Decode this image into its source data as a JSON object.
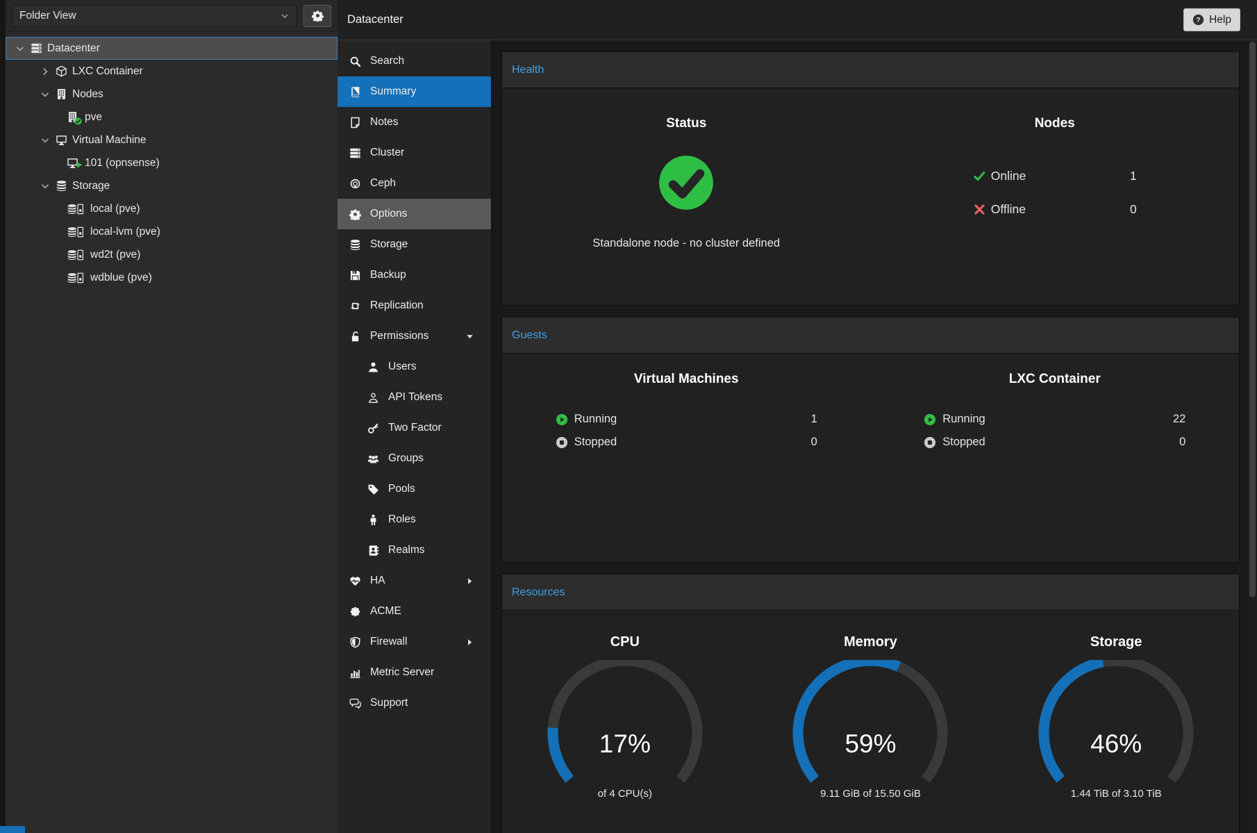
{
  "window": {
    "help_label": "Help"
  },
  "sidebar": {
    "view_selector": {
      "value": "Folder View"
    },
    "tree": [
      {
        "label": "Datacenter",
        "depth": 0,
        "expand": "expanded",
        "icon": "datacenter",
        "state": "selected"
      },
      {
        "label": "LXC Container",
        "depth": 1,
        "expand": "collapsed",
        "icon": "cube",
        "state": "normal"
      },
      {
        "label": "Nodes",
        "depth": 1,
        "expand": "expanded",
        "icon": "building",
        "state": "normal"
      },
      {
        "label": "pve",
        "depth": 2,
        "expand": "leaf",
        "icon": "building-check",
        "state": "normal"
      },
      {
        "label": "Virtual Machine",
        "depth": 1,
        "expand": "expanded",
        "icon": "desktop",
        "state": "normal"
      },
      {
        "label": "101 (opnsense)",
        "depth": 2,
        "expand": "leaf",
        "icon": "desktop-play",
        "state": "normal"
      },
      {
        "label": "Storage",
        "depth": 1,
        "expand": "expanded",
        "icon": "database",
        "state": "normal"
      },
      {
        "label": "local (pve)",
        "depth": 2,
        "expand": "leaf",
        "icon": "database-drive",
        "state": "normal"
      },
      {
        "label": "local-lvm (pve)",
        "depth": 2,
        "expand": "leaf",
        "icon": "database-drive",
        "state": "normal"
      },
      {
        "label": "wd2t (pve)",
        "depth": 2,
        "expand": "leaf",
        "icon": "database-drive",
        "state": "normal"
      },
      {
        "label": "wdblue (pve)",
        "depth": 2,
        "expand": "leaf",
        "icon": "database-drive",
        "state": "normal"
      }
    ]
  },
  "menu": {
    "title": "Datacenter",
    "items": [
      {
        "label": "Search",
        "icon": "search",
        "state": "normal"
      },
      {
        "label": "Summary",
        "icon": "book",
        "state": "selected"
      },
      {
        "label": "Notes",
        "icon": "note",
        "state": "normal"
      },
      {
        "label": "Cluster",
        "icon": "cluster",
        "state": "normal"
      },
      {
        "label": "Ceph",
        "icon": "ceph",
        "state": "normal"
      },
      {
        "label": "Options",
        "icon": "gear",
        "state": "hover"
      },
      {
        "label": "Storage",
        "icon": "database",
        "state": "normal"
      },
      {
        "label": "Backup",
        "icon": "floppy",
        "state": "normal"
      },
      {
        "label": "Replication",
        "icon": "replication",
        "state": "normal"
      },
      {
        "label": "Permissions",
        "icon": "unlock",
        "state": "normal",
        "arrow": "down"
      },
      {
        "label": "Users",
        "icon": "user",
        "state": "normal",
        "indent": true
      },
      {
        "label": "API Tokens",
        "icon": "user-outline",
        "state": "normal",
        "indent": true
      },
      {
        "label": "Two Factor",
        "icon": "key",
        "state": "normal",
        "indent": true
      },
      {
        "label": "Groups",
        "icon": "users",
        "state": "normal",
        "indent": true
      },
      {
        "label": "Pools",
        "icon": "tag",
        "state": "normal",
        "indent": true
      },
      {
        "label": "Roles",
        "icon": "person",
        "state": "normal",
        "indent": true
      },
      {
        "label": "Realms",
        "icon": "address-book",
        "state": "normal",
        "indent": true
      },
      {
        "label": "HA",
        "icon": "heartbeat",
        "state": "normal",
        "arrow": "right"
      },
      {
        "label": "ACME",
        "icon": "acme",
        "state": "normal"
      },
      {
        "label": "Firewall",
        "icon": "shield",
        "state": "normal",
        "arrow": "right"
      },
      {
        "label": "Metric Server",
        "icon": "bar-chart",
        "state": "normal"
      },
      {
        "label": "Support",
        "icon": "comments",
        "state": "normal"
      }
    ]
  },
  "main": {
    "health": {
      "title": "Health",
      "status": {
        "heading": "Status",
        "message": "Standalone node - no cluster defined"
      },
      "nodes": {
        "heading": "Nodes",
        "rows": [
          {
            "label": "Online",
            "value": "1",
            "icon": "check"
          },
          {
            "label": "Offline",
            "value": "0",
            "icon": "times"
          }
        ]
      }
    },
    "guests": {
      "title": "Guests",
      "columns": [
        {
          "heading": "Virtual Machines",
          "rows": [
            {
              "label": "Running",
              "value": "1",
              "icon": "play"
            },
            {
              "label": "Stopped",
              "value": "0",
              "icon": "stop"
            }
          ]
        },
        {
          "heading": "LXC Container",
          "rows": [
            {
              "label": "Running",
              "value": "22",
              "icon": "play"
            },
            {
              "label": "Stopped",
              "value": "0",
              "icon": "stop"
            }
          ]
        }
      ]
    },
    "resources": {
      "title": "Resources",
      "gauges": [
        {
          "heading": "CPU",
          "percent": 17,
          "percent_label": "17%",
          "caption": "of 4 CPU(s)"
        },
        {
          "heading": "Memory",
          "percent": 59,
          "percent_label": "59%",
          "caption": "9.11 GiB of 15.50 GiB"
        },
        {
          "heading": "Storage",
          "percent": 46,
          "percent_label": "46%",
          "caption": "1.44 TiB of 3.10 TiB"
        }
      ]
    }
  },
  "colors": {
    "accent": "#1470b8",
    "panel_title": "#41a0e6",
    "ok_green": "#2fbe44",
    "err_red": "#e95f5f",
    "gauge_track": "#3a3a3a"
  }
}
